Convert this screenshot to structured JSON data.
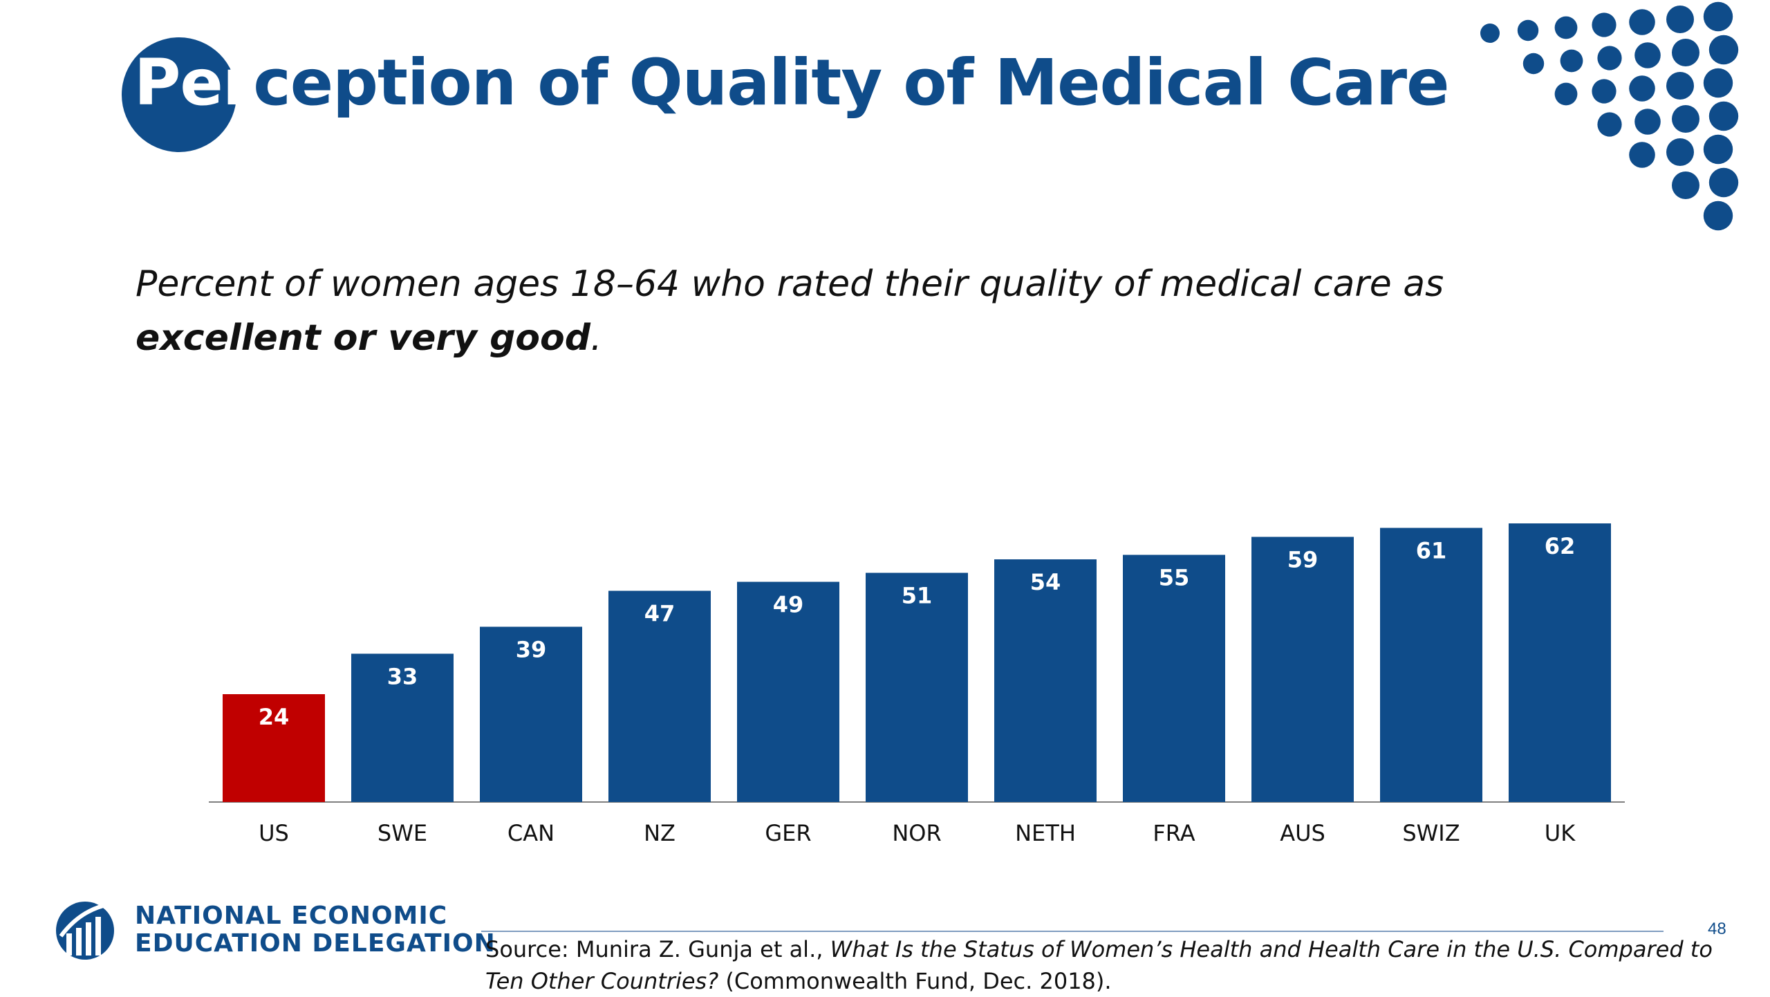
{
  "slide": {
    "title_first": "Per",
    "title_rest": "ception of Quality of Medical Care",
    "subtitle_part1": "Percent of women ages 18–64 who rated their quality of medical care as ",
    "subtitle_bold": "excellent or very good",
    "subtitle_end": ".",
    "org_line1": "NATIONAL ECONOMIC",
    "org_line2": "EDUCATION DELEGATION",
    "source_prefix": "Source: Munira Z. Gunja et al., ",
    "source_italic": "What Is the Status of Women’s Health and Health Care in the U.S. Compared to Ten Other Countries?",
    "source_suffix": " (Commonwealth Fund, Dec. 2018).",
    "page_number": "48"
  },
  "colors": {
    "brand_blue": "#0f4c8a",
    "highlight_red": "#c00000"
  },
  "chart_data": {
    "type": "bar",
    "title": "",
    "xlabel": "",
    "ylabel": "",
    "categories": [
      "US",
      "SWE",
      "CAN",
      "NZ",
      "GER",
      "NOR",
      "NETH",
      "FRA",
      "AUS",
      "SWIZ",
      "UK"
    ],
    "values": [
      24,
      33,
      39,
      47,
      49,
      51,
      54,
      55,
      59,
      61,
      62
    ],
    "highlight_category": "US",
    "ylim": [
      0,
      62
    ],
    "grid": false,
    "data_labels": true
  }
}
